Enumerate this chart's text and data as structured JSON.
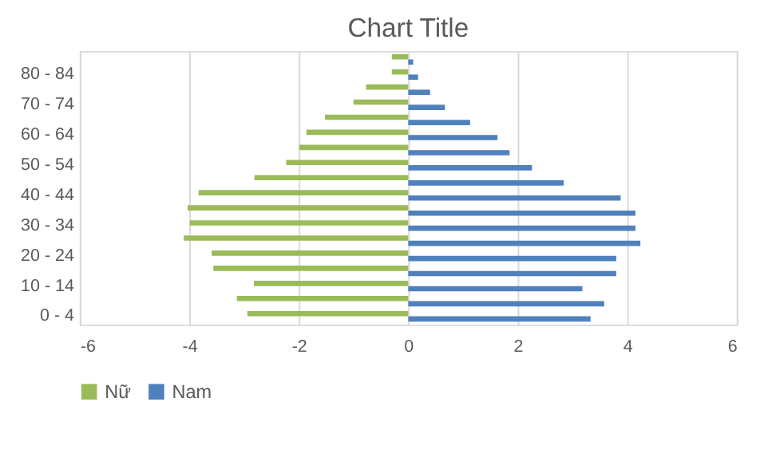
{
  "chart_data": {
    "type": "bar",
    "orientation": "horizontal",
    "title": "Chart Title",
    "categories": [
      null,
      "80 - 84",
      null,
      "70 - 74",
      null,
      "60 - 64",
      null,
      "50 - 54",
      null,
      "40 - 44",
      null,
      "30 - 34",
      null,
      "20 - 24",
      null,
      "10 - 14",
      null,
      "0 - 4"
    ],
    "series": [
      {
        "name": "Nữ",
        "color": "#9bbb59",
        "values": [
          -0.3,
          -0.3,
          -0.77,
          -1.0,
          -1.52,
          -1.86,
          -1.99,
          -2.23,
          -2.81,
          -3.83,
          -4.03,
          -3.99,
          -4.1,
          -3.59,
          -3.56,
          -2.82,
          -3.13,
          -2.94
        ]
      },
      {
        "name": "Nam",
        "color": "#4f81bd",
        "values": [
          0.09,
          0.18,
          0.4,
          0.67,
          1.13,
          1.63,
          1.85,
          2.26,
          2.84,
          3.88,
          4.15,
          4.15,
          4.24,
          3.8,
          3.8,
          3.18,
          3.58,
          3.33
        ]
      }
    ],
    "xlim": [
      -6,
      6
    ],
    "xticks": [
      -6,
      -4,
      -2,
      0,
      2,
      4,
      6
    ],
    "grid": "x",
    "legend": "bottom"
  }
}
